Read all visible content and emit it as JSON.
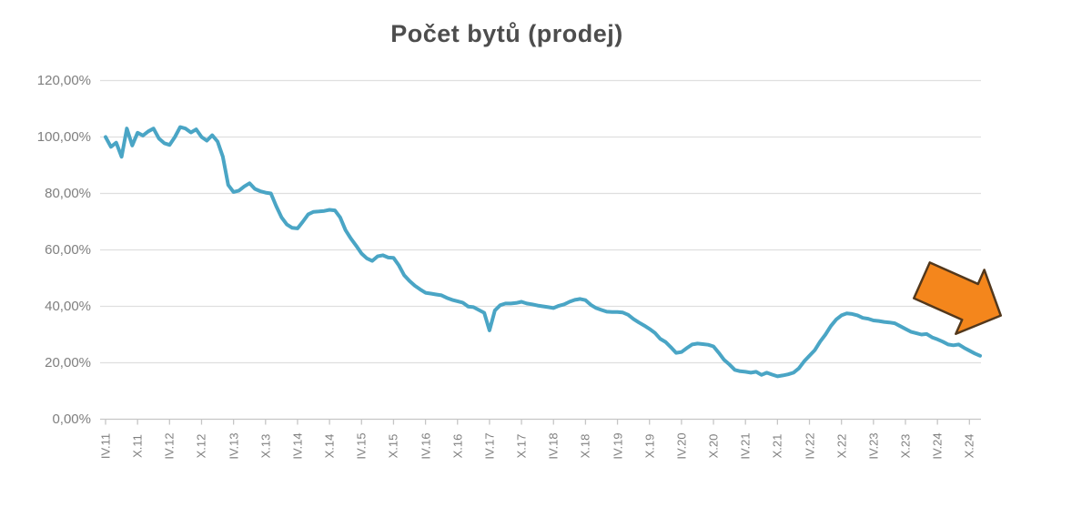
{
  "chart": {
    "title": "Počet bytů (prodej)"
  },
  "chart_data": {
    "type": "line",
    "title": "Počet bytů (prodej)",
    "xlabel": "",
    "ylabel": "",
    "ylim": [
      0,
      120
    ],
    "y_tick_step": 20,
    "grid": "horizontal",
    "legend": "none",
    "y_tick_labels": [
      "0,00%",
      "20,00%",
      "40,00%",
      "60,00%",
      "80,00%",
      "100,00%",
      "120,00%"
    ],
    "x_tick_labels": [
      "IV.11",
      "X.11",
      "IV.12",
      "X.12",
      "IV.13",
      "X.13",
      "IV.14",
      "X.14",
      "IV.15",
      "X.15",
      "IV.16",
      "X.16",
      "IV.17",
      "X.17",
      "IV.18",
      "X.18",
      "IV.19",
      "X.19",
      "IV.20",
      "X.20",
      "IV.21",
      "X.21",
      "IV.22",
      "X.22",
      "IV.23",
      "X.23",
      "IV.24",
      "X.24"
    ],
    "points_per_tick": 6,
    "series": [
      {
        "name": "Počet bytů (prodej)",
        "values": [
          100,
          96.5,
          98,
          93,
          103,
          97,
          101.5,
          100.5,
          102,
          103,
          99.5,
          97.8,
          97.2,
          100,
          103.5,
          103,
          101.6,
          102.7,
          100,
          98.7,
          100.6,
          98.4,
          93,
          83,
          80.5,
          81,
          82.5,
          83.6,
          81.6,
          80.8,
          80.3,
          80,
          75.5,
          71.5,
          69,
          67.8,
          67.6,
          70,
          72.6,
          73.5,
          73.6,
          73.8,
          74.2,
          74,
          71.5,
          67,
          64,
          61.5,
          58.7,
          57,
          56.1,
          57.7,
          58.1,
          57.3,
          57.2,
          54.5,
          51,
          49,
          47.3,
          46,
          44.8,
          44.5,
          44.2,
          43.9,
          43,
          42.3,
          41.8,
          41.3,
          39.9,
          39.7,
          38.7,
          37.7,
          31.5,
          38.5,
          40.4,
          41,
          41,
          41.2,
          41.6,
          41,
          40.7,
          40.3,
          40,
          39.7,
          39.4,
          40.2,
          40.7,
          41.6,
          42.3,
          42.6,
          42.2,
          40.5,
          39.4,
          38.7,
          38.1,
          38,
          38,
          37.8,
          37,
          35.5,
          34.3,
          33.2,
          32,
          30.6,
          28.5,
          27.4,
          25.5,
          23.5,
          23.8,
          25.2,
          26.5,
          26.8,
          26.6,
          26.4,
          25.8,
          23.5,
          21,
          19.4,
          17.5,
          17,
          16.8,
          16.5,
          16.8,
          15.7,
          16.5,
          15.8,
          15.2,
          15.5,
          15.9,
          16.5,
          18,
          20.5,
          22.5,
          24.5,
          27.5,
          30,
          33,
          35.3,
          36.8,
          37.5,
          37.3,
          36.8,
          35.9,
          35.6,
          35,
          34.8,
          34.5,
          34.3,
          34,
          33,
          32,
          31,
          30.5,
          30,
          30.2,
          29,
          28.3,
          27.5,
          26.5,
          26.2,
          26.5,
          25.3,
          24.3,
          23.3,
          22.5
        ]
      }
    ],
    "annotations": [
      {
        "type": "block-arrow",
        "direction": "down-right",
        "meaning": "declining trend"
      }
    ]
  },
  "colors": {
    "line": "#4AA5C5",
    "grid": "#DFDFDF",
    "axis": "#C6C6C6",
    "label": "#7F7F7F",
    "title": "#4D4D4D",
    "background": "#FFFFFF",
    "arrow_fill": "#F4861C",
    "arrow_outline": "#53381C"
  }
}
